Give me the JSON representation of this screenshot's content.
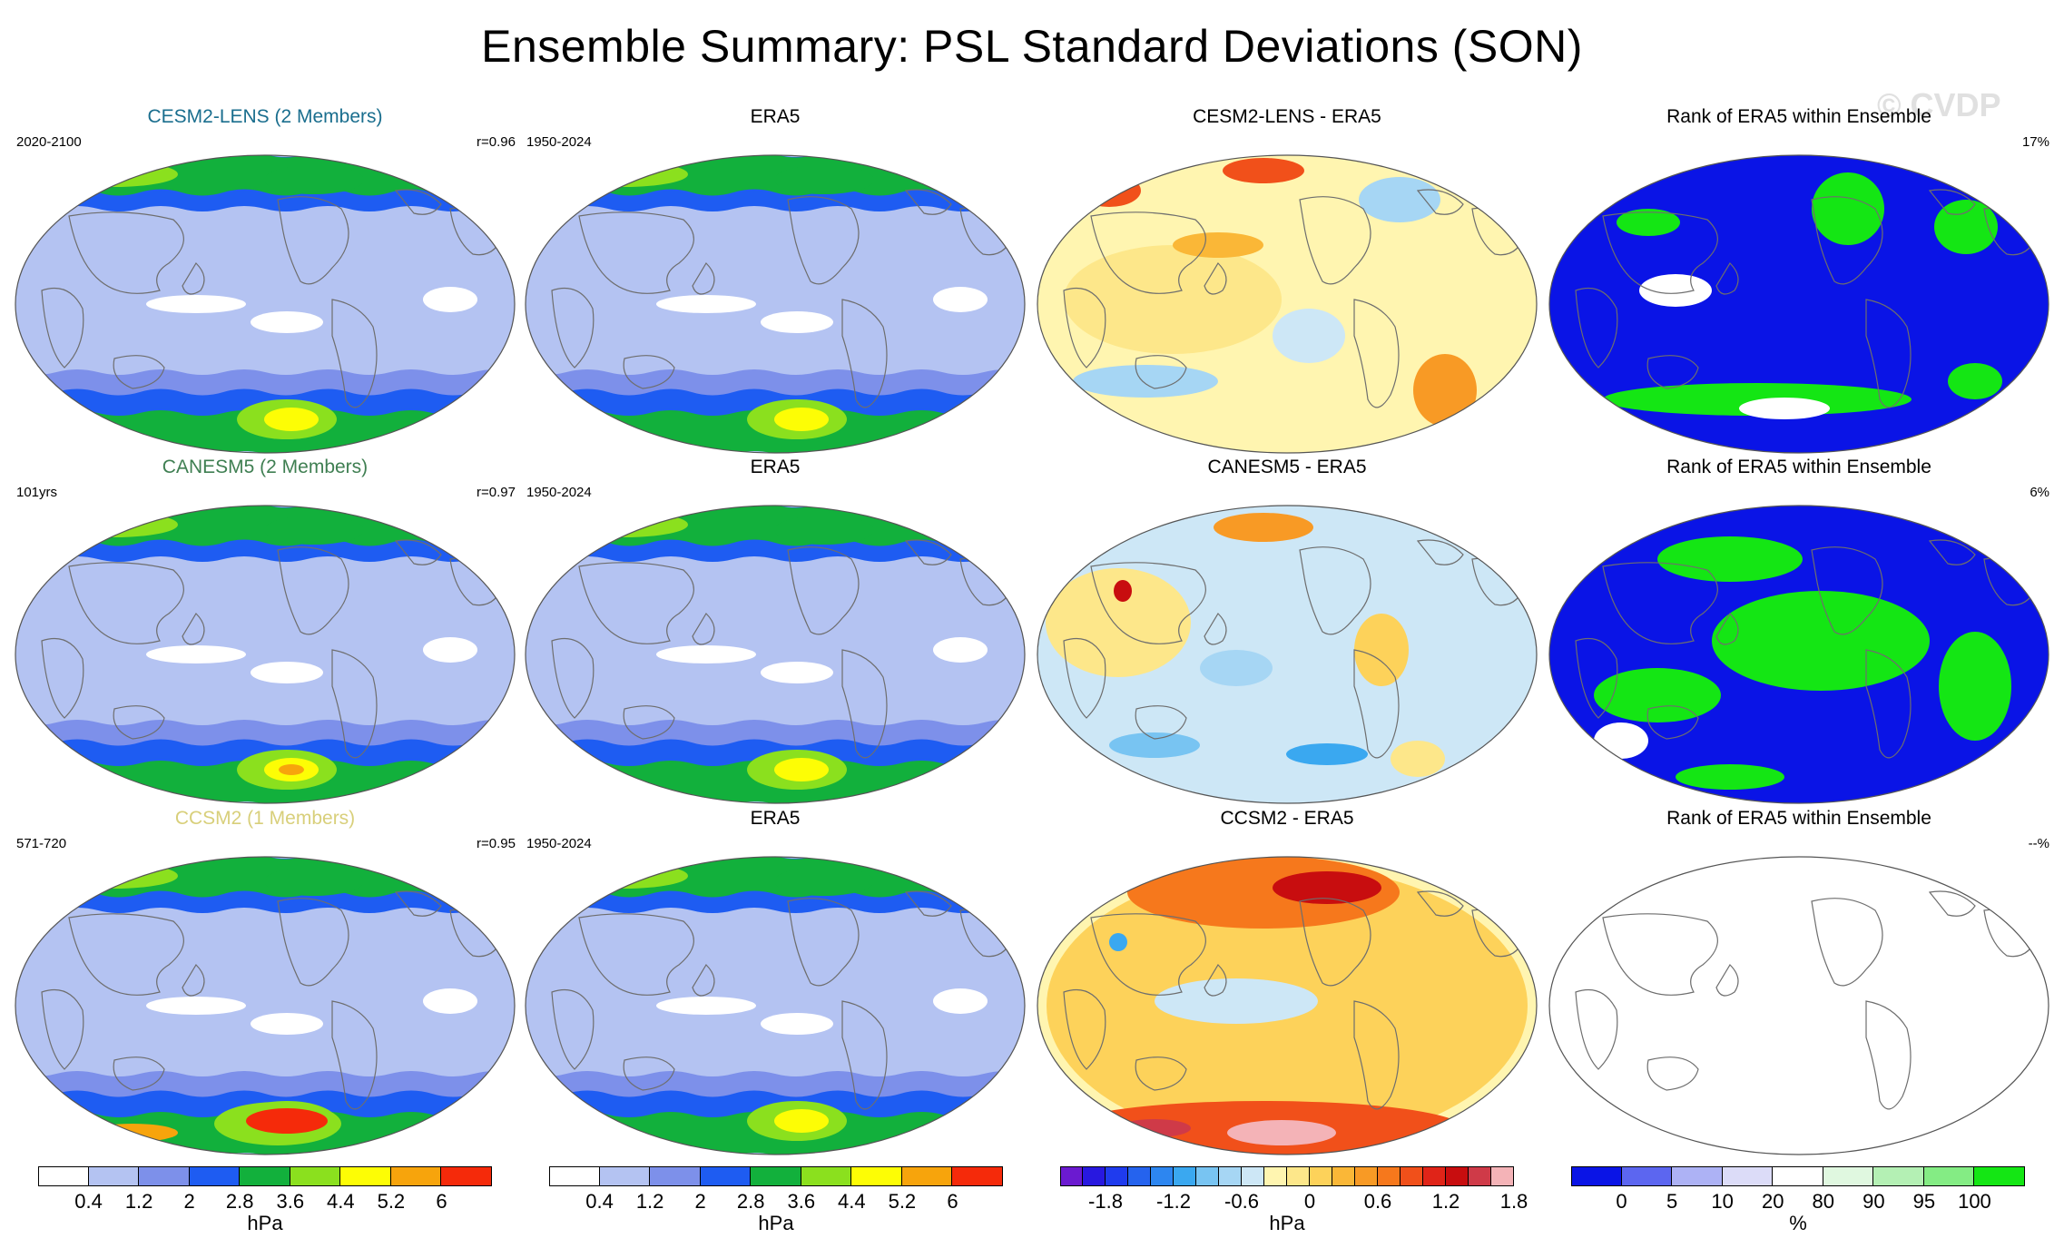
{
  "title": "Ensemble Summary: PSL Standard Deviations (SON)",
  "watermark": "© CVDP",
  "colors": {
    "model_title_1": "#1a6e8e",
    "model_title_2": "#3f7f52",
    "model_title_3": "#d8cf7a",
    "ocean_base": "#b4c3f2",
    "coast": "#6e6e6e"
  },
  "rows": [
    {
      "model_title": "CESM2-LENS (2 Members)",
      "model_years": "2020-2100",
      "model_corr": "r=0.96",
      "obs_title": "ERA5",
      "obs_years": "1950-2024",
      "diff_title": "CESM2-LENS - ERA5",
      "rank_title": "Rank of ERA5 within Ensemble",
      "rank_pct": "17%"
    },
    {
      "model_title": "CANESM5 (2 Members)",
      "model_years": "101yrs",
      "model_corr": "r=0.97",
      "obs_title": "ERA5",
      "obs_years": "1950-2024",
      "diff_title": "CANESM5 - ERA5",
      "rank_title": "Rank of ERA5 within Ensemble",
      "rank_pct": "6%"
    },
    {
      "model_title": "CCSM2 (1 Members)",
      "model_years": "571-720",
      "model_corr": "r=0.95",
      "obs_title": "ERA5",
      "obs_years": "1950-2024",
      "diff_title": "CCSM2 - ERA5",
      "rank_title": "Rank of ERA5 within Ensemble",
      "rank_pct": "--%"
    }
  ],
  "chart_data": [
    {
      "type": "heatmap",
      "title": "Ensemble Summary: PSL Standard Deviations (SON)",
      "description_series": [
        {
          "name": "CESM2-LENS (2 Members)",
          "period": "2020-2100",
          "pattern_correlation": 0.96
        },
        {
          "name": "CANESM5 (2 Members)",
          "period": "101yrs",
          "pattern_correlation": 0.97
        },
        {
          "name": "CCSM2 (1 Members)",
          "period": "571-720",
          "pattern_correlation": 0.95
        },
        {
          "name": "ERA5",
          "period": "1950-2024"
        }
      ],
      "rank_percent": {
        "CESM2-LENS": 17,
        "CANESM5": 6,
        "CCSM2": null
      }
    }
  ],
  "colorbars": [
    {
      "id": "std",
      "unit": "hPa",
      "colors": [
        "#ffffff",
        "#b4c3f2",
        "#7d90ea",
        "#1e5cf2",
        "#12b03c",
        "#8be01e",
        "#fdfd05",
        "#f7a40c",
        "#f52a0a"
      ],
      "ticks": [
        "0.4",
        "1.2",
        "2",
        "2.8",
        "3.6",
        "4.4",
        "5.2",
        "6"
      ]
    },
    {
      "id": "std2",
      "unit": "hPa",
      "colors": [
        "#ffffff",
        "#b4c3f2",
        "#7d90ea",
        "#1e5cf2",
        "#12b03c",
        "#8be01e",
        "#fdfd05",
        "#f7a40c",
        "#f52a0a"
      ],
      "ticks": [
        "0.4",
        "1.2",
        "2",
        "2.8",
        "3.6",
        "4.4",
        "5.2",
        "6"
      ]
    },
    {
      "id": "diff",
      "unit": "hPa",
      "colors": [
        "#6b1ad0",
        "#2818e0",
        "#1f3bee",
        "#2563ee",
        "#2d86f0",
        "#3aa8f0",
        "#78c4f2",
        "#a6d6f4",
        "#cde7f6",
        "#fff5b0",
        "#fde78a",
        "#fdd25a",
        "#fab737",
        "#f89a25",
        "#f6781c",
        "#f1501a",
        "#e02418",
        "#c80d0f",
        "#cf3a48",
        "#f4b3b7"
      ],
      "ticks": [
        "-1.8",
        "-1.2",
        "-0.6",
        "0",
        "0.6",
        "1.2",
        "1.8"
      ]
    },
    {
      "id": "rank",
      "unit": "%",
      "colors": [
        "#0a14e6",
        "#5c66f0",
        "#adb2f5",
        "#dcdcf8",
        "#ffffff",
        "#e0f8e0",
        "#b4f0b4",
        "#84ec84",
        "#14e614"
      ],
      "ticks": [
        "0",
        "5",
        "10",
        "20",
        "80",
        "90",
        "95",
        "100"
      ]
    }
  ]
}
